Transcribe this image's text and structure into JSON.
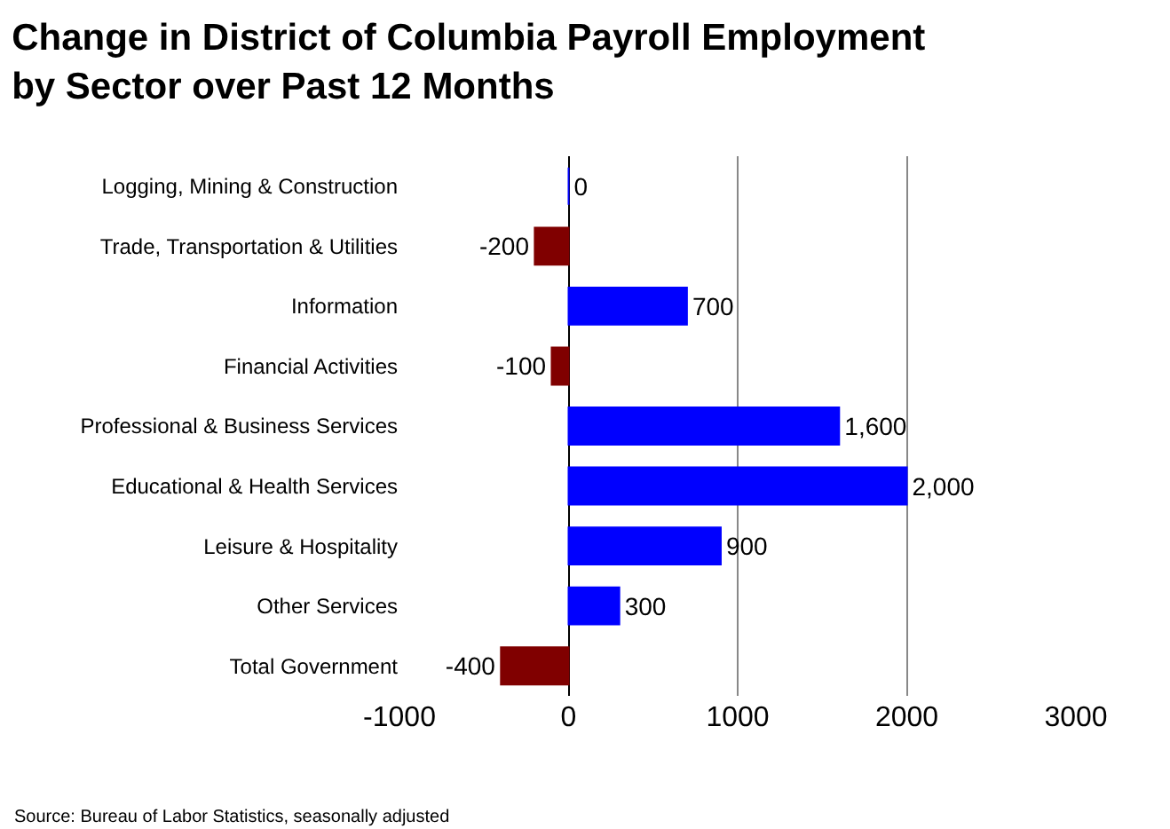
{
  "chart_data": {
    "type": "bar",
    "orientation": "horizontal",
    "title": "Change in District of Columbia Payroll Employment by Sector over Past 12 Months",
    "categories": [
      "Logging, Mining & Construction",
      "Trade, Transportation & Utilities",
      "Information",
      "Financial Activities",
      "Professional & Business Services",
      "Educational & Health Services",
      "Leisure & Hospitality",
      "Other Services",
      "Total Government"
    ],
    "values": [
      0,
      -200,
      700,
      -100,
      1600,
      2000,
      900,
      300,
      -400
    ],
    "value_labels": [
      "0",
      "-200",
      "700",
      "-100",
      "1,600",
      "2,000",
      "900",
      "300",
      "-400"
    ],
    "colors": [
      "#0000ff",
      "#800000",
      "#0000ff",
      "#800000",
      "#0000ff",
      "#0000ff",
      "#0000ff",
      "#0000ff",
      "#800000"
    ],
    "xlim": [
      -1000,
      3000
    ],
    "xticks": [
      -1000,
      0,
      1000,
      2000,
      3000
    ],
    "grid": "x",
    "legend": false,
    "annotations": [
      "Source: Bureau of Labor Statistics, seasonally adjusted"
    ]
  }
}
